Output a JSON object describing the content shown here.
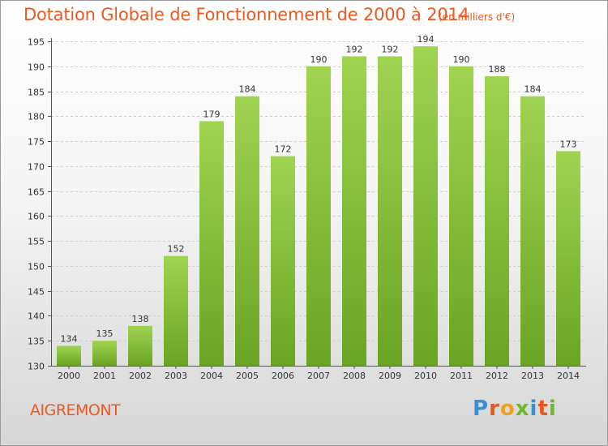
{
  "header": {
    "title": "Dotation Globale de Fonctionnement de 2000 à 2014",
    "unit": "(en milliers d'€)"
  },
  "footer": {
    "commune": "AIGREMONT",
    "logo_text": "Proxiti"
  },
  "colors": {
    "title": "#e85a22",
    "bar_light": "#9fd451",
    "bar_dark": "#6aa423",
    "logo": [
      "#3a8fd0",
      "#e8571e",
      "#f0a020",
      "#6fb82d",
      "#3a8fd0",
      "#e8571e",
      "#6fb82d"
    ]
  },
  "chart_data": {
    "type": "bar",
    "title": "Dotation Globale de Fonctionnement de 2000 à 2014",
    "subtitle": "(en milliers d'€)",
    "xlabel": "",
    "ylabel": "",
    "categories": [
      "2000",
      "2001",
      "2002",
      "2003",
      "2004",
      "2005",
      "2006",
      "2007",
      "2008",
      "2009",
      "2010",
      "2011",
      "2012",
      "2013",
      "2014"
    ],
    "values": [
      134,
      135,
      138,
      152,
      179,
      184,
      172,
      190,
      192,
      192,
      194,
      190,
      188,
      184,
      173
    ],
    "ylim": [
      130,
      195
    ],
    "yticks": [
      130,
      135,
      140,
      145,
      150,
      155,
      160,
      165,
      170,
      175,
      180,
      185,
      190,
      195
    ],
    "grid": true,
    "legend": "none"
  }
}
